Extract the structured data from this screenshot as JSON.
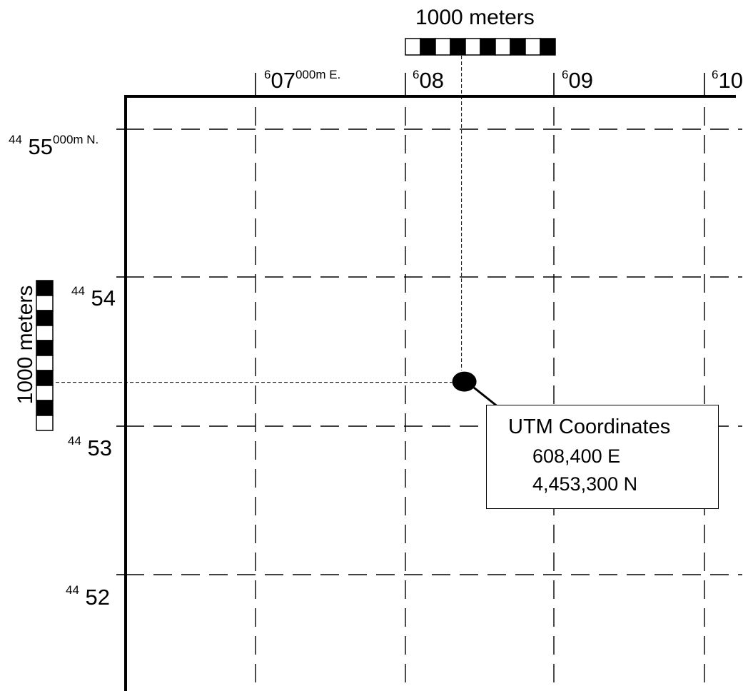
{
  "scale_top": {
    "label": "1000 meters",
    "segments": 10,
    "first_fill": "white"
  },
  "scale_left": {
    "label": "1000 meters",
    "segments": 10,
    "first_fill": "black"
  },
  "easting_labels": [
    {
      "prefix": "6",
      "main": "07",
      "suffix": "000m E."
    },
    {
      "prefix": "6",
      "main": "08",
      "suffix": ""
    },
    {
      "prefix": "6",
      "main": "09",
      "suffix": ""
    },
    {
      "prefix": "6",
      "main": "10",
      "suffix": ""
    }
  ],
  "northing_labels": [
    {
      "prefix": "44",
      "main": "55",
      "suffix": "000m N."
    },
    {
      "prefix": "44",
      "main": "54",
      "suffix": ""
    },
    {
      "prefix": "44",
      "main": "53",
      "suffix": ""
    },
    {
      "prefix": "44",
      "main": "52",
      "suffix": ""
    }
  ],
  "point": {
    "easting": 608400,
    "northing": 4453300
  },
  "callout": {
    "title": "UTM Coordinates",
    "easting_text": "608,400 E",
    "northing_text": "4,453,300 N"
  },
  "colors": {
    "ink": "#000000",
    "background": "#ffffff"
  }
}
